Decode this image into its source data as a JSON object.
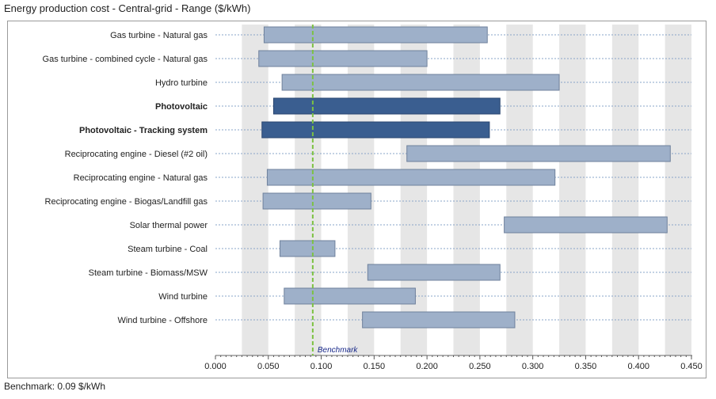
{
  "title": "Energy production cost - Central-grid - Range ($/kWh)",
  "footer": "Benchmark: 0.09 $/kWh",
  "chart_data": {
    "type": "bar",
    "orientation": "horizontal-range",
    "xlim": [
      0,
      0.45
    ],
    "xticks": [
      "0.000",
      "0.050",
      "0.100",
      "0.150",
      "0.200",
      "0.250",
      "0.300",
      "0.350",
      "0.400",
      "0.450"
    ],
    "benchmark": {
      "value": 0.092,
      "label": "Benchmark"
    },
    "colors": {
      "normal": "#9eb0c9",
      "highlight": "#3a5e90",
      "benchmark": "#7cc242",
      "stripe": "#e6e6e6"
    },
    "categories": [
      {
        "label": "Gas turbine - Natural gas",
        "low": 0.046,
        "high": 0.257,
        "bold": false
      },
      {
        "label": "Gas turbine - combined cycle - Natural gas",
        "low": 0.041,
        "high": 0.2,
        "bold": false
      },
      {
        "label": "Hydro turbine",
        "low": 0.063,
        "high": 0.325,
        "bold": false
      },
      {
        "label": "Photovoltaic",
        "low": 0.055,
        "high": 0.269,
        "bold": true
      },
      {
        "label": "Photovoltaic - Tracking system",
        "low": 0.044,
        "high": 0.259,
        "bold": true
      },
      {
        "label": "Reciprocating engine - Diesel (#2 oil)",
        "low": 0.181,
        "high": 0.43,
        "bold": false
      },
      {
        "label": "Reciprocating engine - Natural gas",
        "low": 0.049,
        "high": 0.321,
        "bold": false
      },
      {
        "label": "Reciprocating engine - Biogas/Landfill gas",
        "low": 0.045,
        "high": 0.147,
        "bold": false
      },
      {
        "label": "Solar thermal power",
        "low": 0.273,
        "high": 0.427,
        "bold": false
      },
      {
        "label": "Steam turbine - Coal",
        "low": 0.061,
        "high": 0.113,
        "bold": false
      },
      {
        "label": "Steam turbine - Biomass/MSW",
        "low": 0.144,
        "high": 0.269,
        "bold": false
      },
      {
        "label": "Wind turbine",
        "low": 0.065,
        "high": 0.189,
        "bold": false
      },
      {
        "label": "Wind turbine - Offshore",
        "low": 0.139,
        "high": 0.283,
        "bold": false
      }
    ]
  }
}
